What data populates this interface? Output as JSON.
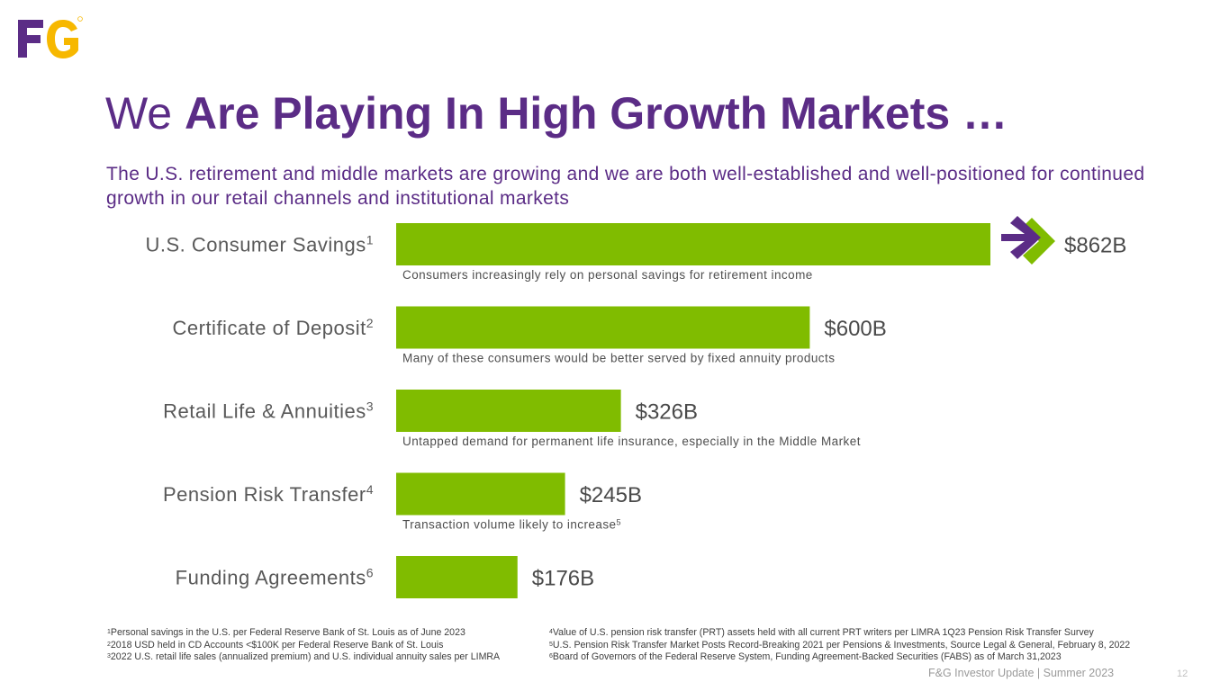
{
  "brand": {
    "logo_text": "F&G",
    "purple": "#5b2c86",
    "gold": "#f7b800",
    "green": "#80bc00"
  },
  "title": {
    "regular": "We ",
    "bold": "Are Playing In High Growth Markets …"
  },
  "subtitle": "The U.S. retirement and middle markets are growing and we are both well-established and well-positioned for continued growth in our retail channels and institutional markets",
  "chart_data": {
    "type": "bar",
    "orientation": "horizontal",
    "unit": "$B",
    "categories": [
      {
        "label": "U.S. Consumer Savings",
        "sup": "1",
        "value": 862,
        "value_label": "$862B",
        "note": "Consumers increasingly rely on personal savings for retirement income",
        "note_sup": ""
      },
      {
        "label": "Certificate of Deposit",
        "sup": "2",
        "value": 600,
        "value_label": "$600B",
        "note": "Many of these consumers would be better served by fixed annuity products",
        "note_sup": ""
      },
      {
        "label": "Retail Life & Annuities",
        "sup": "3",
        "value": 326,
        "value_label": "$326B",
        "note": "Untapped demand for permanent life insurance, especially in the Middle Market",
        "note_sup": ""
      },
      {
        "label": "Pension Risk Transfer",
        "sup": "4",
        "value": 245,
        "value_label": "$245B",
        "note": "Transaction volume likely to increase",
        "note_sup": "5"
      },
      {
        "label": "Funding Agreements",
        "sup": "6",
        "value": 176,
        "value_label": "$176B",
        "note": "",
        "note_sup": ""
      }
    ],
    "bar_color": "#80bc00",
    "arrow_icon": "chevron-arrow-icon",
    "arrow_colors": [
      "#5b2c86",
      "#80bc00"
    ]
  },
  "footnotes": {
    "left": [
      {
        "num": "1",
        "text": "Personal savings in the U.S. per Federal Reserve Bank of St. Louis as of June 2023"
      },
      {
        "num": "2",
        "text": "2018 USD held in CD Accounts <$100K per Federal Reserve Bank of St. Louis"
      },
      {
        "num": "3",
        "text": "2022 U.S. retail life sales (annualized premium) and U.S. individual annuity sales per LIMRA"
      }
    ],
    "right": [
      {
        "num": "4",
        "text": "Value of U.S. pension risk transfer (PRT) assets held with all current PRT writers per LIMRA 1Q23 Pension Risk Transfer Survey"
      },
      {
        "num": "5",
        "text": "U.S. Pension Risk Transfer Market Posts Record-Breaking 2021 per Pensions & Investments, Source Legal & General, February 8, 2022"
      },
      {
        "num": "6",
        "text": "Board of Governors of the Federal Reserve System, Funding Agreement-Backed Securities (FABS) as of March 31,2023"
      }
    ]
  },
  "footer": {
    "text": "F&G Investor Update | Summer 2023",
    "page_number": "12"
  }
}
